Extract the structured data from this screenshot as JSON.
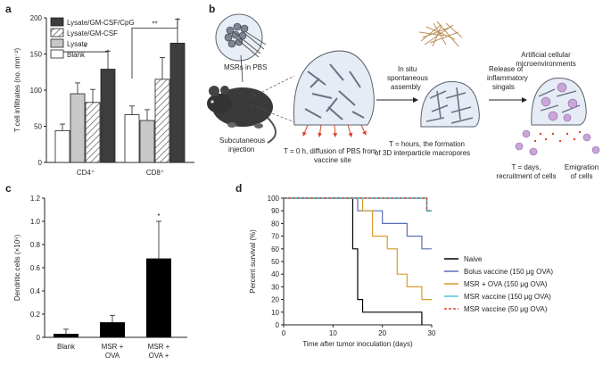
{
  "colors": {
    "lysate_cpg": "#3d3d3d",
    "lysate": "#c8c8c8",
    "naive": "#000000",
    "bolus": "#5b6fb5",
    "msr_ova": "#d99b2b",
    "msr150": "#4fc3dc",
    "msr50": "#d9472b",
    "axis": "#231f20"
  },
  "chart_data": [
    {
      "panel": "a",
      "type": "bar",
      "ylabel": "T cell infiltrates (no. mm⁻²)",
      "ylim": [
        0,
        200
      ],
      "yticks": [
        0,
        50,
        100,
        150,
        200
      ],
      "categories": [
        "CD4⁺",
        "CD8⁺"
      ],
      "series": [
        {
          "name": "Blank",
          "values": [
            44,
            66
          ],
          "errors": [
            9,
            12
          ],
          "fill": "white"
        },
        {
          "name": "Lysate",
          "values": [
            95,
            58
          ],
          "errors": [
            15,
            15
          ],
          "fill": "lightgray"
        },
        {
          "name": "Lysate/GM-CSF",
          "values": [
            83,
            115
          ],
          "errors": [
            18,
            30
          ],
          "fill": "hatch"
        },
        {
          "name": "Lysate/GM-CSF/CpG",
          "values": [
            129,
            165
          ],
          "errors": [
            25,
            33
          ],
          "fill": "dark"
        }
      ],
      "legend_order": [
        "Lysate/GM-CSF/CpG",
        "Lysate/GM-CSF",
        "Lysate",
        "Blank"
      ],
      "significance": [
        {
          "label": "*",
          "category_index": 0
        },
        {
          "label": "**",
          "category_index": 1
        }
      ]
    },
    {
      "panel": "c",
      "type": "bar",
      "ylabel": "Dendritic cells (×10⁵)",
      "ylim": [
        0,
        1.2
      ],
      "yticks": [
        "0",
        "0.2",
        "0.4",
        "0.6",
        "0.8",
        "1.0",
        "1.2"
      ],
      "categories": [
        [
          "Blank"
        ],
        [
          "MSR +",
          "OVA"
        ],
        [
          "MSR +",
          "OVA +"
        ]
      ],
      "values": [
        0.03,
        0.13,
        0.68
      ],
      "errors": [
        0.04,
        0.06,
        0.32
      ],
      "annotations": [
        {
          "label": "*",
          "category_index": 2
        }
      ]
    },
    {
      "panel": "d",
      "type": "line",
      "xlabel": "Time after tumor inoculation (days)",
      "ylabel": "Percent survival (%)",
      "xlim": [
        0,
        30
      ],
      "ylim": [
        0,
        100
      ],
      "xticks": [
        0,
        10,
        20,
        30
      ],
      "yticks": [
        0,
        10,
        20,
        30,
        40,
        50,
        60,
        70,
        80,
        90,
        100
      ],
      "series": [
        {
          "name": "Naive",
          "color_key": "naive",
          "x": [
            0,
            14,
            15,
            16,
            17,
            28
          ],
          "y": [
            100,
            60,
            20,
            10,
            10,
            0
          ]
        },
        {
          "name": "Bolus vaccine (150 μg OVA)",
          "color_key": "bolus",
          "x": [
            0,
            15,
            20,
            25,
            28,
            30
          ],
          "y": [
            100,
            90,
            80,
            70,
            60,
            60
          ]
        },
        {
          "name": "MSR + OVA (150 μg OVA)",
          "color_key": "msr_ova",
          "x": [
            0,
            16,
            18,
            21,
            23,
            25,
            28,
            30
          ],
          "y": [
            100,
            90,
            70,
            60,
            40,
            30,
            20,
            20
          ]
        },
        {
          "name": "MSR vaccine (150 μg OVA)",
          "color_key": "msr150",
          "x": [
            0,
            29,
            30
          ],
          "y": [
            100,
            90,
            90
          ]
        },
        {
          "name": "MSR vaccine (50 μg OVA)",
          "color_key": "msr50",
          "dashed": true,
          "x": [
            0,
            29,
            30
          ],
          "y": [
            100,
            90,
            90
          ]
        }
      ]
    }
  ],
  "panels": {
    "a": "a",
    "b": "b",
    "c": "c",
    "d": "d"
  },
  "diagram": {
    "msr_label": "MSRs in PBS",
    "step1": [
      "Subcutaneous",
      "injection"
    ],
    "step2": [
      "T = 0 h, diffusion of PBS from",
      "vaccine site"
    ],
    "step3": [
      "In situ",
      "spontaneous",
      "assembly"
    ],
    "step4": [
      "T = hours, the formation",
      "of 3D interparticle macropores"
    ],
    "step5": [
      "Release of",
      "inflammatory",
      "singals"
    ],
    "step6": [
      "Artificial cellular",
      "microenvironments"
    ],
    "step7": [
      "T = days,",
      "recruitment of cells"
    ],
    "step8": [
      "Emigration",
      "of cells"
    ]
  }
}
